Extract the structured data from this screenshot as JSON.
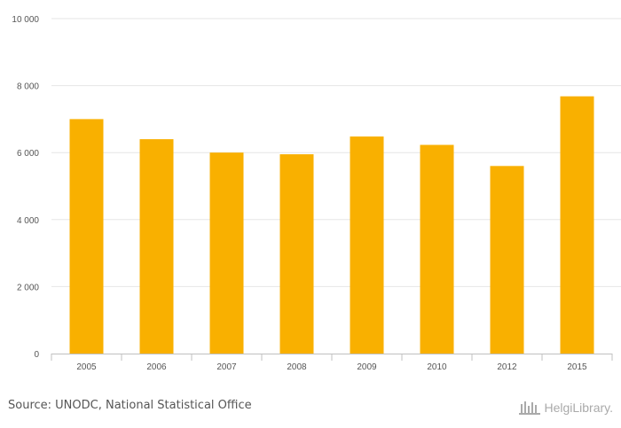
{
  "chart_data": {
    "type": "bar",
    "categories": [
      "2005",
      "2006",
      "2007",
      "2008",
      "2009",
      "2010",
      "2012",
      "2015"
    ],
    "values": [
      7000,
      6400,
      6000,
      5950,
      6480,
      6230,
      5600,
      7680
    ],
    "ylim": [
      0,
      10000
    ],
    "yticks": [
      0,
      2000,
      4000,
      6000,
      8000,
      10000
    ],
    "ytick_labels": [
      "0",
      "2 000",
      "4 000",
      "6 000",
      "8 000",
      "10 000"
    ],
    "bar_color": "#f9b000",
    "grid": true,
    "legend": "none"
  },
  "footer": {
    "source": "Source: UNODC, National Statistical Office",
    "brand": "HelgiLibrary."
  }
}
